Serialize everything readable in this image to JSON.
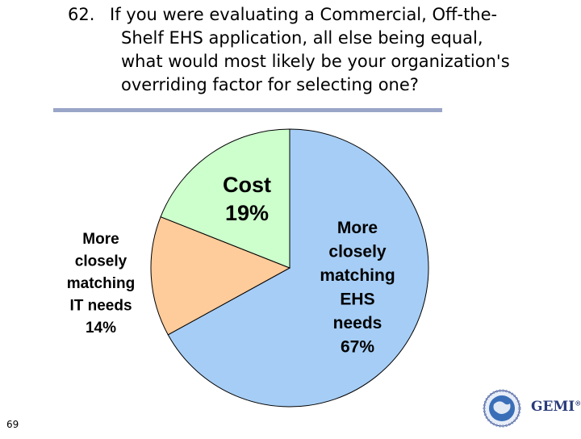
{
  "slide": {
    "question_number": "62.",
    "question_line1": "If you were evaluating a Commercial, Off-the-",
    "question_line2": "Shelf EHS application, all else being equal,",
    "question_line3": "what would most likely be your organization's",
    "question_line4": "overriding factor for selecting one?",
    "page_number": "69",
    "logo_text": "GEMI",
    "logo_mark": "®"
  },
  "chart_data": {
    "type": "pie",
    "title": "",
    "slices": [
      {
        "label": "More closely matching EHS needs",
        "value": 67,
        "display": [
          "More",
          "closely",
          "matching",
          "EHS",
          "needs",
          "67%"
        ],
        "color": "#a6cdf5"
      },
      {
        "label": "More closely matching IT needs",
        "value": 14,
        "display": [
          "More",
          "closely",
          "matching",
          "IT needs",
          "14%"
        ],
        "color": "#fecb9a"
      },
      {
        "label": "Cost",
        "value": 19,
        "display": [
          "Cost",
          "19%"
        ],
        "color": "#ccffcc"
      }
    ],
    "start": "12 o'clock",
    "direction": "clockwise",
    "legend": "none",
    "labels": "on/near slices"
  }
}
